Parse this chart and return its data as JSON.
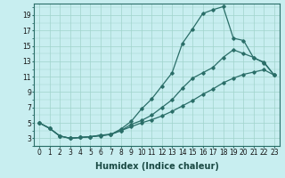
{
  "xlabel": "Humidex (Indice chaleur)",
  "bg_color": "#c8eef0",
  "line_color": "#2a6e68",
  "grid_color": "#a0d4cc",
  "xlim": [
    -0.5,
    23.5
  ],
  "ylim": [
    2.0,
    20.5
  ],
  "xticks": [
    0,
    1,
    2,
    3,
    4,
    5,
    6,
    7,
    8,
    9,
    10,
    11,
    12,
    13,
    14,
    15,
    16,
    17,
    18,
    19,
    20,
    21,
    22,
    23
  ],
  "yticks": [
    3,
    5,
    7,
    9,
    11,
    13,
    15,
    17,
    19
  ],
  "series1_x": [
    0,
    1,
    2,
    3,
    4,
    5,
    6,
    7,
    8,
    9,
    10,
    11,
    12,
    13,
    14,
    15,
    16,
    17,
    18,
    19,
    20,
    21,
    22,
    23
  ],
  "series1_y": [
    5.0,
    4.3,
    3.3,
    3.0,
    3.1,
    3.2,
    3.3,
    3.5,
    4.2,
    5.2,
    6.8,
    8.1,
    9.8,
    11.5,
    15.3,
    17.2,
    19.2,
    19.7,
    20.1,
    16.0,
    15.7,
    13.4,
    12.9,
    11.2
  ],
  "series2_x": [
    0,
    1,
    2,
    3,
    4,
    5,
    6,
    7,
    8,
    9,
    10,
    11,
    12,
    13,
    14,
    15,
    16,
    17,
    18,
    19,
    20,
    21,
    22,
    23
  ],
  "series2_y": [
    5.0,
    4.3,
    3.3,
    3.0,
    3.1,
    3.2,
    3.4,
    3.5,
    4.0,
    4.8,
    5.3,
    6.0,
    7.0,
    8.0,
    9.5,
    10.8,
    11.5,
    12.2,
    13.5,
    14.5,
    14.0,
    13.5,
    12.8,
    11.2
  ],
  "series3_x": [
    0,
    1,
    2,
    3,
    4,
    5,
    6,
    7,
    8,
    9,
    10,
    11,
    12,
    13,
    14,
    15,
    16,
    17,
    18,
    19,
    20,
    21,
    22,
    23
  ],
  "series3_y": [
    5.0,
    4.3,
    3.3,
    3.0,
    3.1,
    3.2,
    3.4,
    3.5,
    4.0,
    4.5,
    5.0,
    5.4,
    5.9,
    6.5,
    7.2,
    7.9,
    8.7,
    9.4,
    10.2,
    10.8,
    11.3,
    11.6,
    11.9,
    11.2
  ],
  "tick_fontsize": 5.5,
  "label_fontsize": 7,
  "marker": "D",
  "marker_size": 1.8,
  "linewidth": 0.9
}
